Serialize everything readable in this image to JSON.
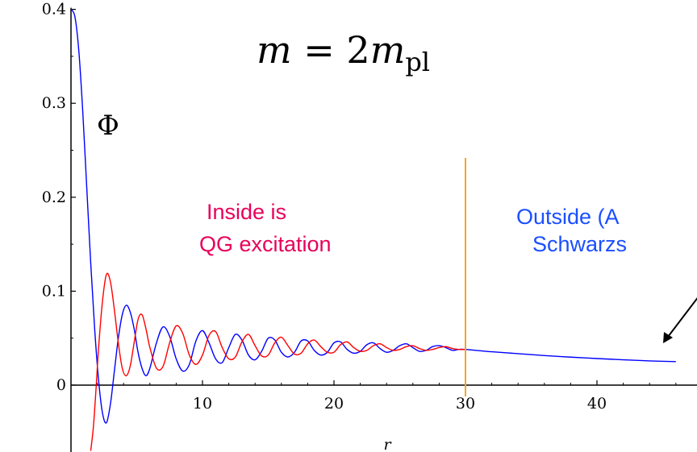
{
  "chart_data": {
    "type": "line",
    "title": "m = 2m",
    "title_parts": {
      "lhs": "m",
      "eq": " = 2",
      "m": "m",
      "sub": "pl"
    },
    "ylabel": "Φ",
    "xlabel": "r",
    "xlim": [
      0,
      46
    ],
    "ylim": [
      -0.07,
      0.4
    ],
    "x_ticks": [
      10,
      20,
      30,
      40
    ],
    "y_ticks": [
      0,
      0.1,
      0.2,
      0.3,
      0.4
    ],
    "x_tick_labels": [
      "10",
      "20",
      "30",
      "40"
    ],
    "y_tick_labels": [
      "0",
      "0.1",
      "0.2",
      "0.3",
      "0.4"
    ],
    "vline": {
      "x": 30,
      "color": "#f5a623"
    },
    "annotations": {
      "inside": {
        "lines": [
          "Inside is",
          "QG excitation"
        ],
        "color": "#e8005a"
      },
      "outside": {
        "lines": [
          "Outside (A",
          "Schwarzs"
        ],
        "color": "#1a4fff"
      }
    },
    "series": [
      {
        "color": "#0000ff",
        "x": [
          0,
          0.3,
          0.6,
          0.9,
          1.2,
          1.5,
          1.8,
          2.1,
          2.4,
          2.7,
          3.0,
          3.3,
          3.6,
          3.9,
          4.2,
          4.5,
          4.8,
          5.1,
          5.4,
          5.7,
          6.0,
          6.5,
          7.0,
          7.5,
          8.0,
          8.5,
          9.0,
          9.5,
          10.0,
          10.5,
          11.0,
          11.5,
          12.0,
          12.5,
          13.0,
          13.5,
          14.0,
          14.5,
          15.0,
          15.5,
          16.0,
          16.5,
          17.0,
          17.5,
          18.0,
          18.5,
          19.0,
          19.5,
          20.0,
          20.5,
          21.0,
          21.5,
          22.0,
          22.5,
          23.0,
          23.5,
          24.0,
          24.5,
          25.0,
          25.5,
          26.0,
          26.5,
          27.0,
          27.5,
          28.0,
          28.5,
          29.0,
          29.5,
          30.0,
          32.0,
          34.0,
          36.0,
          38.0,
          40.0,
          42.0,
          44.0,
          46.0
        ],
        "y": [
          0.4,
          0.392,
          0.355,
          0.29,
          0.21,
          0.13,
          0.06,
          0.005,
          -0.03,
          -0.04,
          -0.02,
          0.015,
          0.05,
          0.075,
          0.085,
          0.078,
          0.06,
          0.035,
          0.018,
          0.01,
          0.018,
          0.045,
          0.062,
          0.052,
          0.028,
          0.015,
          0.022,
          0.047,
          0.058,
          0.045,
          0.028,
          0.024,
          0.04,
          0.054,
          0.048,
          0.032,
          0.027,
          0.036,
          0.05,
          0.048,
          0.035,
          0.03,
          0.035,
          0.047,
          0.047,
          0.037,
          0.032,
          0.035,
          0.045,
          0.046,
          0.038,
          0.034,
          0.036,
          0.043,
          0.045,
          0.039,
          0.035,
          0.037,
          0.042,
          0.044,
          0.04,
          0.036,
          0.037,
          0.041,
          0.042,
          0.04,
          0.037,
          0.038,
          0.038,
          0.0355,
          0.0335,
          0.0315,
          0.0298,
          0.0283,
          0.027,
          0.0258,
          0.025
        ]
      },
      {
        "color": "#ff0000",
        "x": [
          1.5,
          1.7,
          1.9,
          2.1,
          2.4,
          2.7,
          3.0,
          3.3,
          3.6,
          3.9,
          4.2,
          4.5,
          4.8,
          5.1,
          5.4,
          5.7,
          6.0,
          6.5,
          7.0,
          7.5,
          8.0,
          8.5,
          9.0,
          9.5,
          10.0,
          10.5,
          11.0,
          11.5,
          12.0,
          12.5,
          13.0,
          13.5,
          14.0,
          14.5,
          15.0,
          15.5,
          16.0,
          16.5,
          17.0,
          17.5,
          18.0,
          18.5,
          19.0,
          19.5,
          20.0,
          20.5,
          21.0,
          21.5,
          22.0,
          22.5,
          23.0,
          23.5,
          24.0,
          24.5,
          25.0,
          25.5,
          26.0,
          26.5,
          27.0,
          27.5,
          28.0,
          28.5,
          29.0,
          29.5,
          30.0
        ],
        "y": [
          -0.07,
          -0.045,
          -0.005,
          0.04,
          0.09,
          0.118,
          0.11,
          0.08,
          0.045,
          0.018,
          0.01,
          0.02,
          0.045,
          0.07,
          0.075,
          0.06,
          0.04,
          0.018,
          0.02,
          0.045,
          0.063,
          0.055,
          0.032,
          0.022,
          0.032,
          0.053,
          0.057,
          0.04,
          0.028,
          0.03,
          0.046,
          0.054,
          0.042,
          0.031,
          0.032,
          0.045,
          0.051,
          0.042,
          0.033,
          0.034,
          0.044,
          0.048,
          0.041,
          0.035,
          0.035,
          0.043,
          0.046,
          0.04,
          0.036,
          0.037,
          0.042,
          0.044,
          0.04,
          0.037,
          0.038,
          0.041,
          0.042,
          0.039,
          0.037,
          0.038,
          0.04,
          0.041,
          0.039,
          0.038,
          0.038
        ]
      }
    ]
  }
}
